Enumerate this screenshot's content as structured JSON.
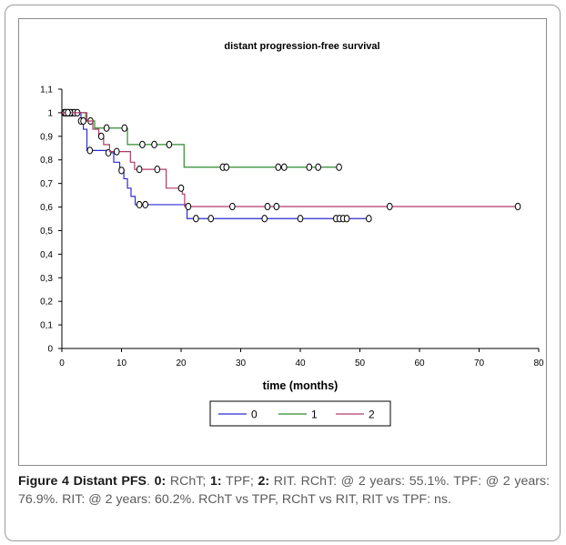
{
  "chart_data": {
    "type": "line",
    "title": "distant progression-free survival",
    "xlabel": "time (months)",
    "ylabel": "",
    "xlim": [
      0,
      80
    ],
    "ylim": [
      0,
      1.1
    ],
    "x_ticks": [
      "0",
      "10",
      "20",
      "30",
      "40",
      "50",
      "60",
      "70",
      "80"
    ],
    "y_ticks": [
      "0",
      "0,1",
      "0,2",
      "0,3",
      "0,4",
      "0,5",
      "0,6",
      "0,7",
      "0,8",
      "0,9",
      "1",
      "1,1"
    ],
    "legend_position": "bottom",
    "grid": false,
    "series": [
      {
        "name": "0",
        "color": "#2b2bd0",
        "steps": [
          [
            0,
            1
          ],
          [
            3.2,
            0.965
          ],
          [
            3.6,
            0.93
          ],
          [
            4.2,
            0.84
          ],
          [
            7.5,
            0.83
          ],
          [
            8.7,
            0.79
          ],
          [
            9.7,
            0.755
          ],
          [
            10.4,
            0.72
          ],
          [
            11,
            0.68
          ],
          [
            11.6,
            0.645
          ],
          [
            12.3,
            0.61
          ],
          [
            21,
            0.551
          ],
          [
            51.5,
            0.551
          ]
        ],
        "censored": [
          [
            0.4,
            1
          ],
          [
            0.8,
            1
          ],
          [
            1.2,
            1
          ],
          [
            1.7,
            1
          ],
          [
            2.1,
            1
          ],
          [
            4.7,
            0.84
          ],
          [
            7.8,
            0.83
          ],
          [
            10,
            0.755
          ],
          [
            13,
            0.61
          ],
          [
            14,
            0.61
          ],
          [
            22.5,
            0.551
          ],
          [
            25,
            0.551
          ],
          [
            34,
            0.551
          ],
          [
            40,
            0.551
          ],
          [
            46,
            0.551
          ],
          [
            46.6,
            0.551
          ],
          [
            47.2,
            0.551
          ],
          [
            47.8,
            0.551
          ],
          [
            51.5,
            0.551
          ]
        ]
      },
      {
        "name": "1",
        "color": "#2e8b2e",
        "steps": [
          [
            0,
            1
          ],
          [
            4,
            0.965
          ],
          [
            5.5,
            0.935
          ],
          [
            11,
            0.865
          ],
          [
            20.5,
            0.769
          ],
          [
            46.5,
            0.769
          ]
        ],
        "censored": [
          [
            0.6,
            1
          ],
          [
            1.4,
            1
          ],
          [
            2.6,
            1
          ],
          [
            3.2,
            0.965
          ],
          [
            4.8,
            0.965
          ],
          [
            7.5,
            0.935
          ],
          [
            10.5,
            0.935
          ],
          [
            13.5,
            0.865
          ],
          [
            15.5,
            0.865
          ],
          [
            18,
            0.865
          ],
          [
            27,
            0.769
          ],
          [
            27.6,
            0.769
          ],
          [
            36.3,
            0.769
          ],
          [
            37.3,
            0.769
          ],
          [
            41.5,
            0.769
          ],
          [
            43,
            0.769
          ],
          [
            46.5,
            0.769
          ]
        ]
      },
      {
        "name": "2",
        "color": "#b03a6a",
        "steps": [
          [
            0,
            1
          ],
          [
            4.2,
            0.965
          ],
          [
            5.2,
            0.93
          ],
          [
            6.2,
            0.9
          ],
          [
            7,
            0.865
          ],
          [
            8,
            0.835
          ],
          [
            11.5,
            0.79
          ],
          [
            12.2,
            0.76
          ],
          [
            17.5,
            0.68
          ],
          [
            20.2,
            0.655
          ],
          [
            20.6,
            0.602
          ],
          [
            76.5,
            0.602
          ]
        ],
        "censored": [
          [
            1,
            1
          ],
          [
            3.6,
            0.965
          ],
          [
            6.6,
            0.9
          ],
          [
            9.2,
            0.835
          ],
          [
            13,
            0.76
          ],
          [
            16,
            0.76
          ],
          [
            20,
            0.68
          ],
          [
            21.2,
            0.602
          ],
          [
            28.6,
            0.602
          ],
          [
            34.5,
            0.602
          ],
          [
            36,
            0.602
          ],
          [
            55,
            0.602
          ],
          [
            76.5,
            0.602
          ]
        ]
      }
    ]
  },
  "caption": {
    "label": "Figure 4",
    "title": "Distant PFS",
    "parts": [
      {
        "bold": "0:",
        "text": " RChT; "
      },
      {
        "bold": "1:",
        "text": " TPF; "
      },
      {
        "bold": "2:",
        "text": " RIT. RChT: @ 2 years: 55.1%. TPF: @ 2 years: 76.9%. RIT: @ 2 years: 60.2%. RChT vs TPF, RChT vs RIT, RIT vs TPF: ns."
      }
    ]
  }
}
